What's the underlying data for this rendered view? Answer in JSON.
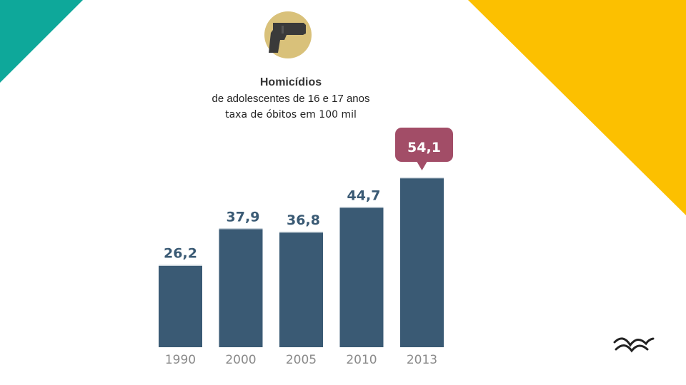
{
  "header": {
    "title": "Homicídios",
    "subtitle": "de adolescentes de 16 e 17 anos",
    "caption": "taxa de óbitos em 100 mil"
  },
  "icons": {
    "badge": "pistol-icon",
    "logo": "bird-wings-logo"
  },
  "colors": {
    "bar": "#3a5a74",
    "label": "#3a5a74",
    "highlight_callout": "#a24d67",
    "teal_corner": "#0ea89a",
    "yellow_corner": "#fcc000",
    "badge_circle": "#d9c17a"
  },
  "chart_data": {
    "type": "bar",
    "title": "Homicídios",
    "subtitle": "de adolescentes de 16 e 17 anos",
    "ylabel": "taxa de óbitos em 100 mil",
    "xlabel": "",
    "categories": [
      "1990",
      "2000",
      "2005",
      "2010",
      "2013"
    ],
    "values": [
      26.2,
      37.9,
      36.8,
      44.7,
      54.1
    ],
    "value_labels": [
      "26,2",
      "37,9",
      "36,8",
      "44,7",
      "54,1"
    ],
    "highlight_index": 4,
    "ylim": [
      0,
      54.1
    ],
    "grid": false,
    "legend": "none"
  }
}
